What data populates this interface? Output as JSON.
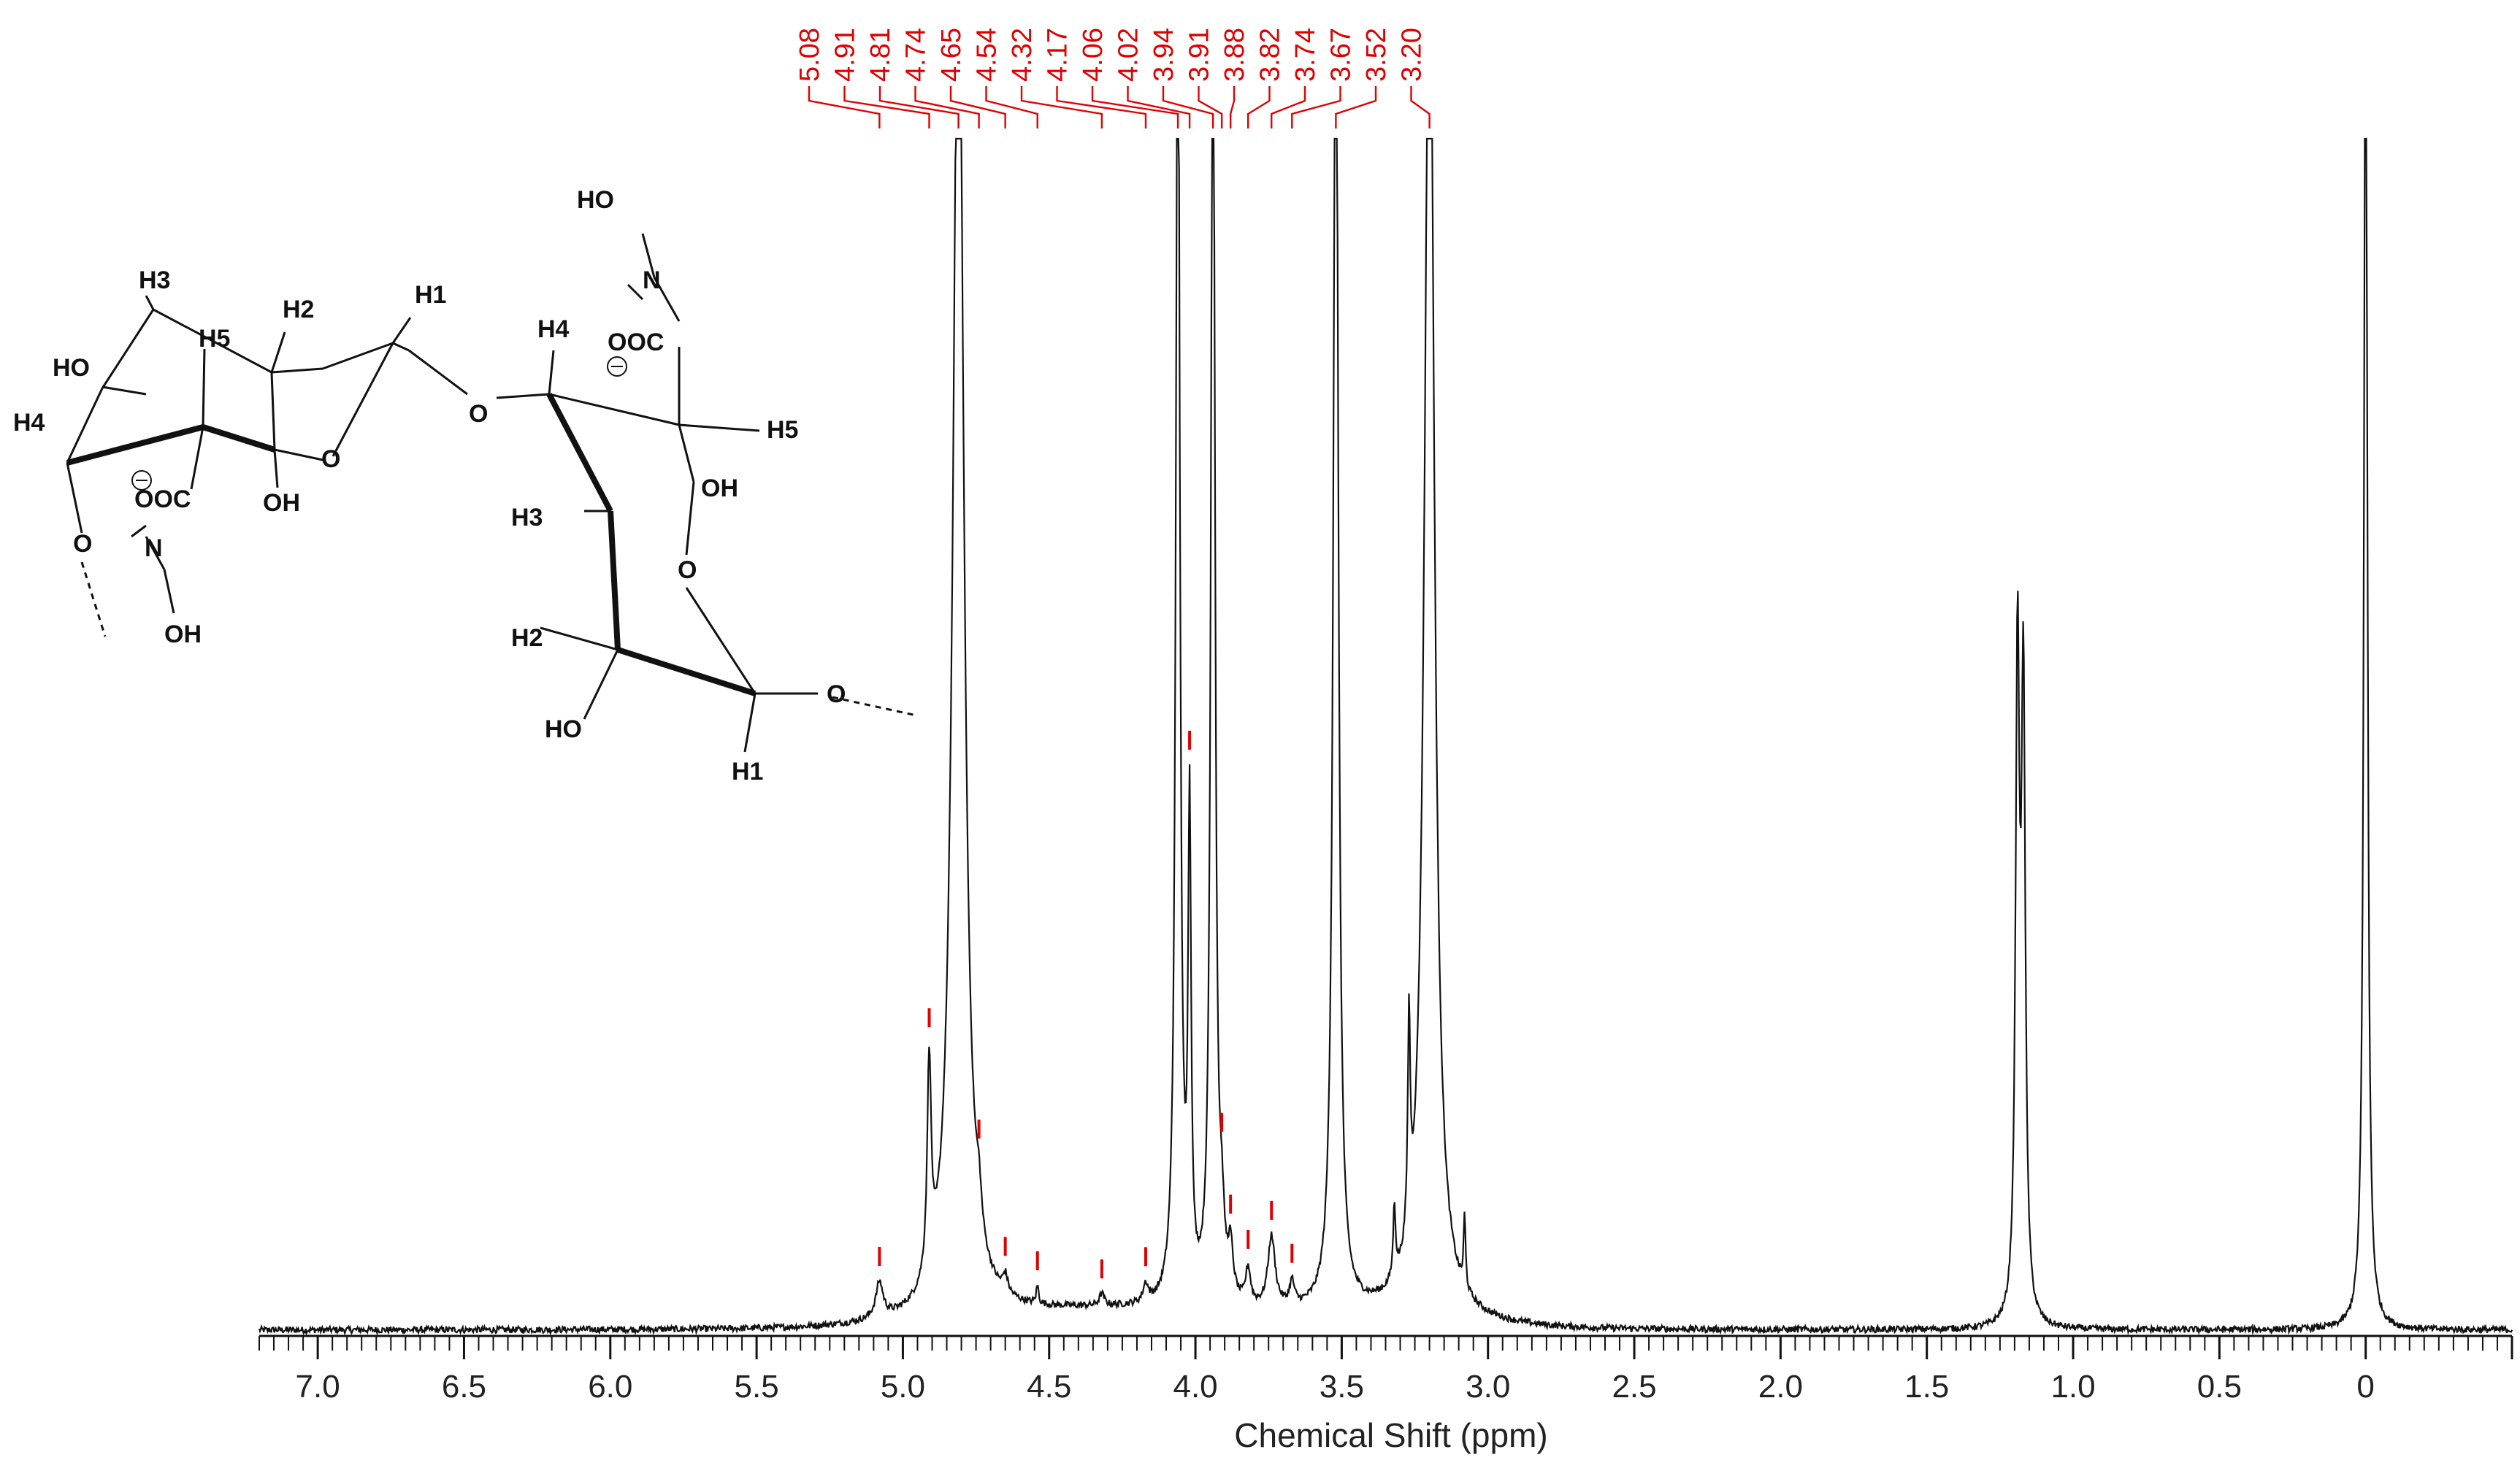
{
  "chart_data": {
    "type": "line",
    "xlabel": "Chemical Shift (ppm)",
    "xlim": [
      7.2,
      -0.5
    ],
    "x_reversed": true,
    "x_ticks": [
      "7.0",
      "6.5",
      "6.0",
      "5.5",
      "5.0",
      "4.5",
      "4.0",
      "3.5",
      "3.0",
      "2.5",
      "2.0",
      "1.5",
      "1.0",
      "0.5",
      "0"
    ],
    "x_tick_values": [
      7.0,
      6.5,
      6.0,
      5.5,
      5.0,
      4.5,
      4.0,
      3.5,
      3.0,
      2.5,
      2.0,
      1.5,
      1.0,
      0.5,
      0.0
    ],
    "ylim": [
      0,
      100
    ],
    "peak_labels": [
      "5.08",
      "4.91",
      "4.81",
      "4.74",
      "4.65",
      "4.54",
      "4.32",
      "4.17",
      "4.06",
      "4.02",
      "3.94",
      "3.91",
      "3.88",
      "3.82",
      "3.74",
      "3.67",
      "3.52",
      "3.20"
    ],
    "peak_label_values": [
      5.08,
      4.91,
      4.81,
      4.74,
      4.65,
      4.54,
      4.32,
      4.17,
      4.06,
      4.02,
      3.94,
      3.91,
      3.88,
      3.82,
      3.74,
      3.67,
      3.52,
      3.2
    ],
    "peaks": [
      {
        "x": 5.08,
        "height": 3.0,
        "width": 0.015
      },
      {
        "x": 4.91,
        "height": 18.0,
        "width": 0.008
      },
      {
        "x": 4.81,
        "height": 120.0,
        "width": 0.022
      },
      {
        "x": 4.74,
        "height": 3.0,
        "width": 0.01
      },
      {
        "x": 4.65,
        "height": 1.5,
        "width": 0.01
      },
      {
        "x": 4.54,
        "height": 1.5,
        "width": 0.005
      },
      {
        "x": 4.32,
        "height": 1.0,
        "width": 0.01
      },
      {
        "x": 4.17,
        "height": 1.5,
        "width": 0.01
      },
      {
        "x": 4.06,
        "height": 120.0,
        "width": 0.008
      },
      {
        "x": 4.02,
        "height": 40.0,
        "width": 0.006
      },
      {
        "x": 3.94,
        "height": 120.0,
        "width": 0.008
      },
      {
        "x": 3.91,
        "height": 5.0,
        "width": 0.01
      },
      {
        "x": 3.88,
        "height": 4.0,
        "width": 0.01
      },
      {
        "x": 3.82,
        "height": 3.0,
        "width": 0.01
      },
      {
        "x": 3.74,
        "height": 6.0,
        "width": 0.015
      },
      {
        "x": 3.67,
        "height": 2.0,
        "width": 0.01
      },
      {
        "x": 3.52,
        "height": 120.0,
        "width": 0.01
      },
      {
        "x": 3.32,
        "height": 6.0,
        "width": 0.005
      },
      {
        "x": 3.27,
        "height": 18.0,
        "width": 0.005
      },
      {
        "x": 3.2,
        "height": 120.0,
        "width": 0.02
      },
      {
        "x": 3.08,
        "height": 6.0,
        "width": 0.004
      },
      {
        "x": 1.19,
        "height": 55.0,
        "width": 0.008
      },
      {
        "x": 1.17,
        "height": 52.0,
        "width": 0.008
      },
      {
        "x": 0.0,
        "height": 120.0,
        "width": 0.007
      }
    ]
  },
  "structure": {
    "left_ring": {
      "labels": [
        "H3",
        "H2",
        "H1",
        "H5",
        "HO",
        "H4",
        "O",
        "OH",
        "O",
        "OOC",
        "N",
        "OH"
      ]
    },
    "right_ring": {
      "labels": [
        "HO",
        "N",
        "OOC",
        "H4",
        "O",
        "H5",
        "OH",
        "H3",
        "O",
        "H2",
        "HO",
        "O",
        "H1"
      ]
    }
  }
}
